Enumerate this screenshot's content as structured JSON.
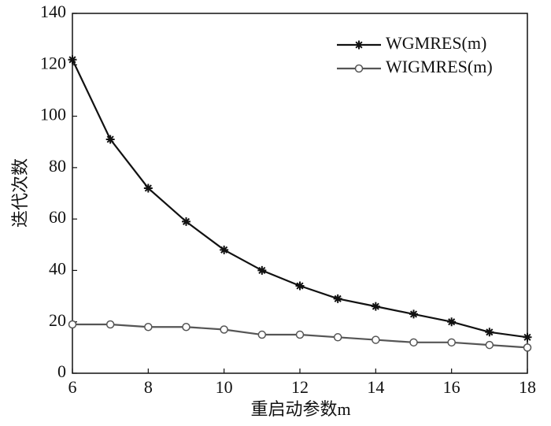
{
  "chart_data": {
    "type": "line",
    "x_label": "重启动参数m",
    "y_label": "迭代次数",
    "x": [
      6,
      7,
      8,
      9,
      10,
      11,
      12,
      13,
      14,
      15,
      16,
      17,
      18
    ],
    "series": [
      {
        "name": "WGMRES(m)",
        "color": "#111111",
        "marker": "star",
        "values": [
          122,
          91,
          72,
          59,
          48,
          40,
          34,
          29,
          26,
          23,
          20,
          16,
          14
        ]
      },
      {
        "name": "WIGMRES(m)",
        "color": "#555555",
        "marker": "circle",
        "values": [
          19,
          19,
          18,
          18,
          17,
          15,
          15,
          14,
          13,
          12,
          12,
          11,
          10
        ]
      }
    ],
    "xlim": [
      6,
      18
    ],
    "xticks": [
      6,
      8,
      10,
      12,
      14,
      16,
      18
    ],
    "ylim": [
      0,
      140
    ],
    "yticks": [
      0,
      20,
      40,
      60,
      80,
      100,
      120,
      140
    ],
    "legend": "upper right"
  }
}
